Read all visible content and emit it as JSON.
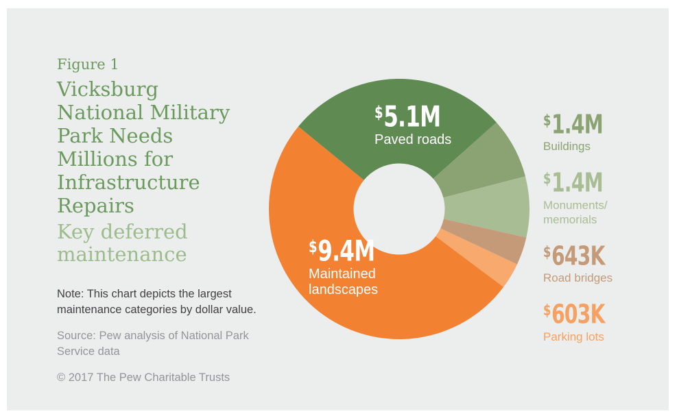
{
  "colors": {
    "canvas_bg": "#FFFFFF",
    "panel_bg": "#ECEDED",
    "title_green": "#6B9A5E",
    "subtitle_green": "#9CBC8B",
    "note_text": "#414042",
    "muted_text": "#939598",
    "chart_label": "#FFFFFF"
  },
  "header": {
    "figure_label": "Figure 1",
    "title_lines": [
      "Vicksburg",
      "National Military",
      "Park Needs",
      "Millions for",
      "Infrastructure",
      "Repairs"
    ],
    "subtitle_lines": [
      "Key deferred",
      "maintenance"
    ]
  },
  "footnotes": {
    "note": "Note: This chart depicts the largest maintenance categories by dollar value.",
    "source": "Source: Pew analysis of National Park Service data",
    "copyright": "© 2017 The Pew Charitable Trusts"
  },
  "chart_data": {
    "type": "pie",
    "subtype": "donut",
    "title": "Vicksburg National Military Park Needs Millions for Infrastructure Repairs — Key deferred maintenance",
    "units": "USD",
    "start_angle_deg": 309.3,
    "direction": "clockwise",
    "inner_radius_ratio": 0.35,
    "legend_position": "right",
    "slices": [
      {
        "id": "paved-roads",
        "label": "Paved roads",
        "value_musd": 5.1,
        "display": "$5.1M",
        "color": "#5F8B53"
      },
      {
        "id": "buildings",
        "label": "Buildings",
        "value_musd": 1.4,
        "display": "$1.4M",
        "color": "#8BA372"
      },
      {
        "id": "monuments-memorials",
        "label": "Monuments/memorials",
        "value_musd": 1.4,
        "display": "$1.4M",
        "color": "#A9BD95"
      },
      {
        "id": "road-bridges",
        "label": "Road bridges",
        "value_musd": 0.643,
        "display": "$643K",
        "color": "#C49A79"
      },
      {
        "id": "parking-lots",
        "label": "Parking lots",
        "value_musd": 0.603,
        "display": "$603K",
        "color": "#F7A96E"
      },
      {
        "id": "maintained-landscapes",
        "label": "Maintained landscapes",
        "value_musd": 9.4,
        "display": "$9.4M",
        "color": "#F28132"
      }
    ]
  },
  "donut_labels": [
    {
      "currency": "$",
      "amount": "5.1M",
      "label_line1": "Paved roads",
      "label_line2": ""
    },
    {
      "currency": "$",
      "amount": "9.4M",
      "label_line1": "Maintained",
      "label_line2": "landscapes"
    }
  ],
  "legend": {
    "items": [
      {
        "currency": "$",
        "amount": "1.4M",
        "label_line1": "Buildings",
        "label_line2": "",
        "color": "#8BA372"
      },
      {
        "currency": "$",
        "amount": "1.4M",
        "label_line1": "Monuments/",
        "label_line2": "memorials",
        "color": "#A9BD95"
      },
      {
        "currency": "$",
        "amount": "643K",
        "label_line1": "Road bridges",
        "label_line2": "",
        "color": "#C49A79"
      },
      {
        "currency": "$",
        "amount": "603K",
        "label_line1": "Parking lots",
        "label_line2": "",
        "color": "#F6A161"
      }
    ]
  }
}
